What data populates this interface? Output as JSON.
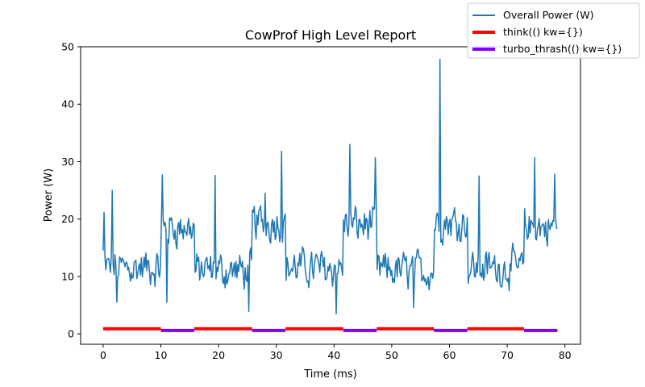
{
  "chart_data": {
    "type": "line",
    "title": "CowProf High Level Report",
    "xlabel": "Time (ms)",
    "ylabel": "Power (W)",
    "xlim": [
      -3.9,
      82.7
    ],
    "ylim": [
      -1.8,
      50
    ],
    "xticks": [
      0,
      10,
      20,
      30,
      40,
      50,
      60,
      70,
      80
    ],
    "yticks": [
      0,
      10,
      20,
      30,
      40,
      50
    ],
    "grid": false,
    "legend": "top-right",
    "power_series": {
      "name": "Overall Power (W)",
      "color": "#1f77b4",
      "x_start": 0,
      "x_end": 78.7,
      "samples": 500,
      "segment_levels": [
        11.5,
        18.5,
        11.0,
        19.5,
        11.5,
        19.0,
        11.0,
        19.5,
        11.5,
        18.5
      ],
      "noise_amplitude": 3.2,
      "spikes": [
        {
          "x": 1.5,
          "y": 25.0
        },
        {
          "x": 10.2,
          "y": 27.7
        },
        {
          "x": 19.4,
          "y": 27.6
        },
        {
          "x": 28.0,
          "y": 24.5
        },
        {
          "x": 30.9,
          "y": 31.8
        },
        {
          "x": 42.8,
          "y": 33.0
        },
        {
          "x": 47.2,
          "y": 30.7
        },
        {
          "x": 58.3,
          "y": 47.8
        },
        {
          "x": 65.2,
          "y": 27.5
        },
        {
          "x": 74.7,
          "y": 30.7
        },
        {
          "x": 78.2,
          "y": 27.8
        },
        {
          "x": 25.2,
          "y": 3.9
        },
        {
          "x": 40.4,
          "y": 3.5
        },
        {
          "x": 53.8,
          "y": 4.6
        },
        {
          "x": 2.4,
          "y": 5.5
        },
        {
          "x": 11.0,
          "y": 5.5
        }
      ]
    },
    "function_series": [
      {
        "name": "think(() kw={})",
        "color": "#ff0000",
        "y": 0.9,
        "intervals": [
          [
            0,
            10
          ],
          [
            15.8,
            25.8
          ],
          [
            31.6,
            41.6
          ],
          [
            47.4,
            57.3
          ],
          [
            63.1,
            72.9
          ]
        ]
      },
      {
        "name": "turbo_thrash(() kw={})",
        "color": "#7f00ff",
        "y": 0.6,
        "intervals": [
          [
            10,
            15.8
          ],
          [
            25.8,
            31.6
          ],
          [
            41.6,
            47.4
          ],
          [
            57.3,
            63.1
          ],
          [
            72.9,
            78.7
          ]
        ]
      }
    ]
  }
}
